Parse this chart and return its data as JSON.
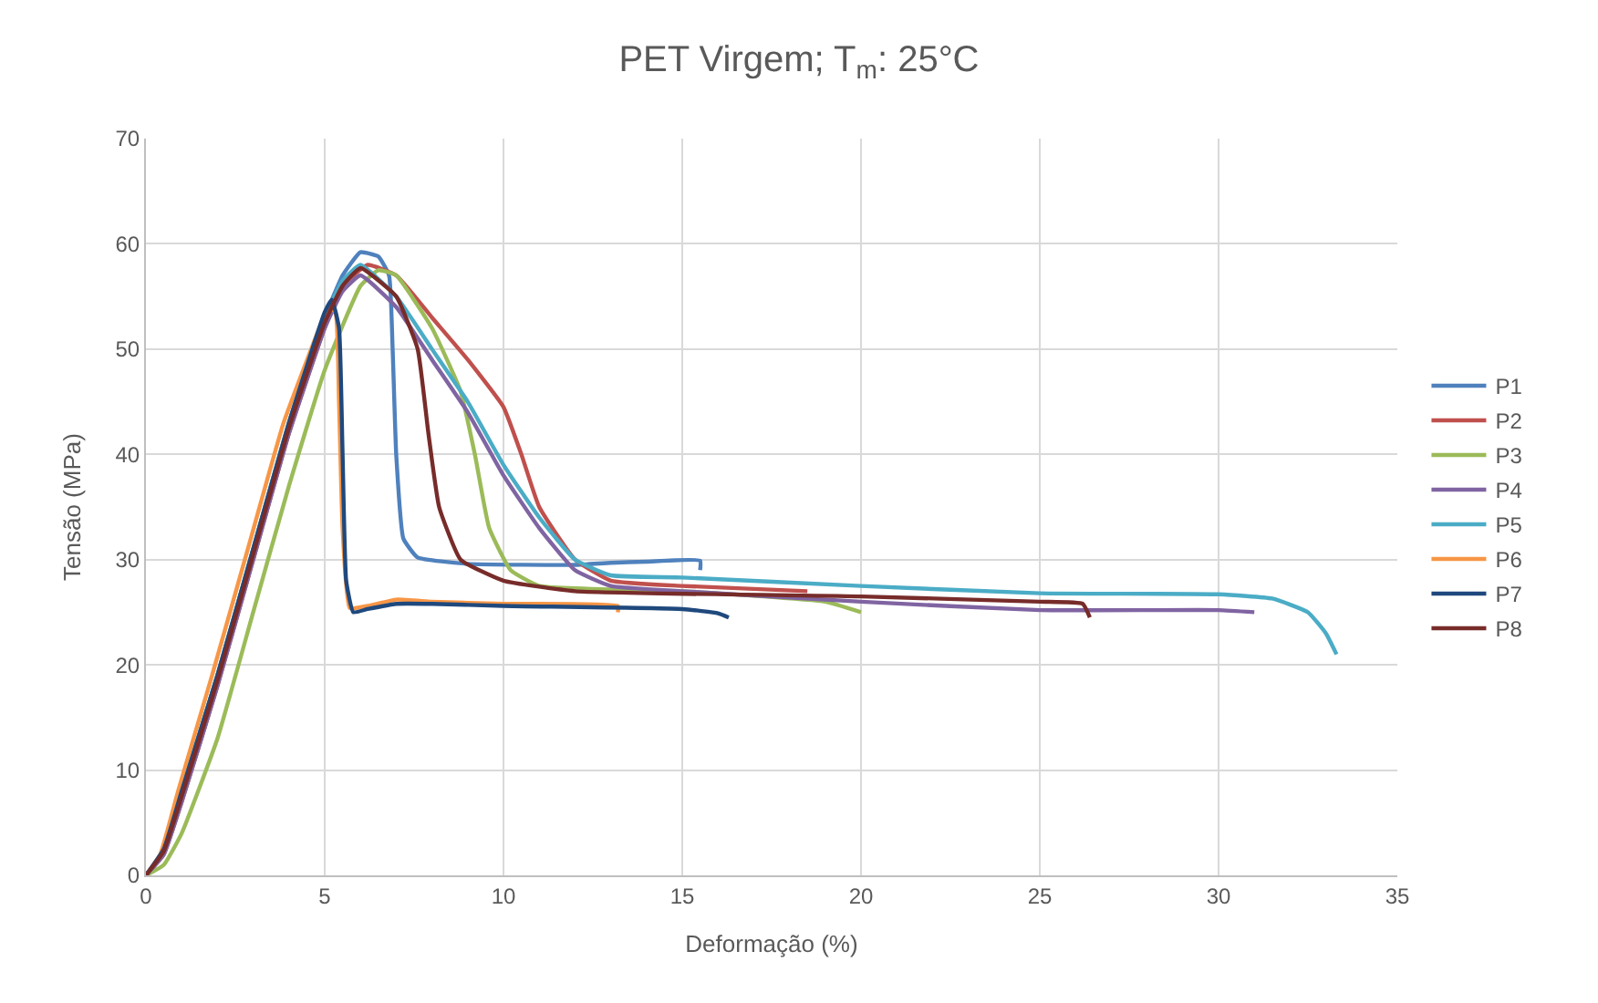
{
  "chart_data": {
    "type": "line",
    "title": "PET Virgem; T$_{m}$: 25°C",
    "xlabel": "Deformação (%)",
    "ylabel": "Tensão (MPa)",
    "xlim": [
      0,
      35
    ],
    "xticks": [
      0,
      5,
      10,
      15,
      20,
      25,
      30,
      35
    ],
    "ylim": [
      0,
      70
    ],
    "yticks": [
      0,
      10,
      20,
      30,
      40,
      50,
      60,
      70
    ],
    "grid": true,
    "legend": "right",
    "marker": "none",
    "line_style": "solid",
    "series": [
      {
        "name": "P1",
        "color": "#4f81bd",
        "x": [
          0,
          0.5,
          1,
          2,
          3,
          4,
          5,
          5.5,
          6,
          6.5,
          6.8,
          6.9,
          7.0,
          7.2,
          7.6,
          9,
          12,
          13,
          14,
          15.5,
          15.5
        ],
        "values": [
          0,
          2.5,
          8,
          19,
          31,
          43,
          53,
          57,
          59.2,
          58.8,
          57,
          50,
          40,
          32,
          30.2,
          29.6,
          29.5,
          29.7,
          29.8,
          29.9,
          29
        ]
      },
      {
        "name": "P2",
        "color": "#c0504d",
        "x": [
          0,
          0.5,
          1,
          2,
          3,
          4,
          5,
          5.5,
          6.2,
          7,
          8,
          9,
          10,
          10.5,
          11,
          12,
          13,
          15,
          18.5
        ],
        "values": [
          0,
          2,
          7,
          18,
          30,
          42,
          52,
          56,
          58,
          57,
          53,
          49,
          44.5,
          40,
          35,
          30,
          28,
          27.5,
          27
        ]
      },
      {
        "name": "P3",
        "color": "#9bbb59",
        "x": [
          0,
          0.5,
          1,
          2,
          3,
          4,
          5,
          6,
          6.5,
          7,
          8,
          8.8,
          9.2,
          9.6,
          10.2,
          11,
          15,
          19,
          20
        ],
        "values": [
          0,
          1,
          4,
          13,
          25,
          37,
          48,
          56,
          57.5,
          57,
          52,
          46,
          40,
          33,
          29,
          27.5,
          27,
          26,
          25
        ]
      },
      {
        "name": "P4",
        "color": "#8064a2",
        "x": [
          0,
          0.5,
          1,
          2,
          3,
          4,
          5,
          5.5,
          6,
          7,
          8,
          9,
          10,
          11,
          12,
          13,
          15,
          20,
          25,
          30,
          31
        ],
        "values": [
          0,
          2,
          7,
          18,
          30,
          42,
          52,
          55.5,
          57,
          54,
          49,
          44,
          38,
          33,
          29,
          27.5,
          27,
          26,
          25.2,
          25.2,
          25
        ]
      },
      {
        "name": "P5",
        "color": "#4bacc6",
        "x": [
          1,
          2,
          3,
          4,
          5,
          5.5,
          6,
          7,
          8,
          9,
          10,
          11,
          12,
          13,
          15,
          20,
          25,
          30,
          31.5,
          32.5,
          33,
          33.3
        ],
        "values": [
          8,
          19,
          31,
          43,
          53,
          56.5,
          58,
          55,
          50,
          45,
          39,
          34,
          30,
          28.5,
          28.3,
          27.5,
          26.8,
          26.7,
          26.3,
          25,
          23,
          21
        ]
      },
      {
        "name": "P6",
        "color": "#f79646",
        "x": [
          0,
          0.4,
          0.9,
          1.85,
          2.85,
          3.85,
          4.85,
          5.1,
          5.3,
          5.4,
          5.5,
          5.7,
          6.2,
          7,
          8,
          10,
          13.2,
          13.2
        ],
        "values": [
          0,
          2,
          8,
          19,
          31,
          43,
          52,
          54,
          53.5,
          45,
          33,
          25.4,
          25.6,
          26.2,
          26,
          25.8,
          25.6,
          25
        ]
      },
      {
        "name": "P7",
        "color": "#1f497d",
        "x": [
          0,
          0.5,
          1,
          2,
          3,
          4,
          5,
          5.2,
          5.4,
          5.5,
          5.6,
          5.8,
          6.2,
          7,
          8,
          10,
          15,
          16,
          16.3
        ],
        "values": [
          0,
          2.5,
          8,
          19,
          31,
          43,
          53.5,
          54.7,
          52,
          40,
          28,
          25,
          25.3,
          25.8,
          25.8,
          25.6,
          25.3,
          24.9,
          24.5
        ]
      },
      {
        "name": "P8",
        "color": "#772c2a",
        "x": [
          0,
          0.5,
          1,
          2,
          3,
          4,
          5,
          5.5,
          6,
          7,
          7.6,
          7.9,
          8.2,
          8.8,
          10,
          12,
          20,
          25,
          26.2,
          26.4
        ],
        "values": [
          0,
          2.3,
          7.5,
          18.5,
          30.5,
          42.5,
          52.5,
          56,
          57.7,
          55,
          50,
          42,
          35,
          30,
          28,
          27,
          26.5,
          26,
          25.8,
          24.5
        ]
      }
    ]
  }
}
